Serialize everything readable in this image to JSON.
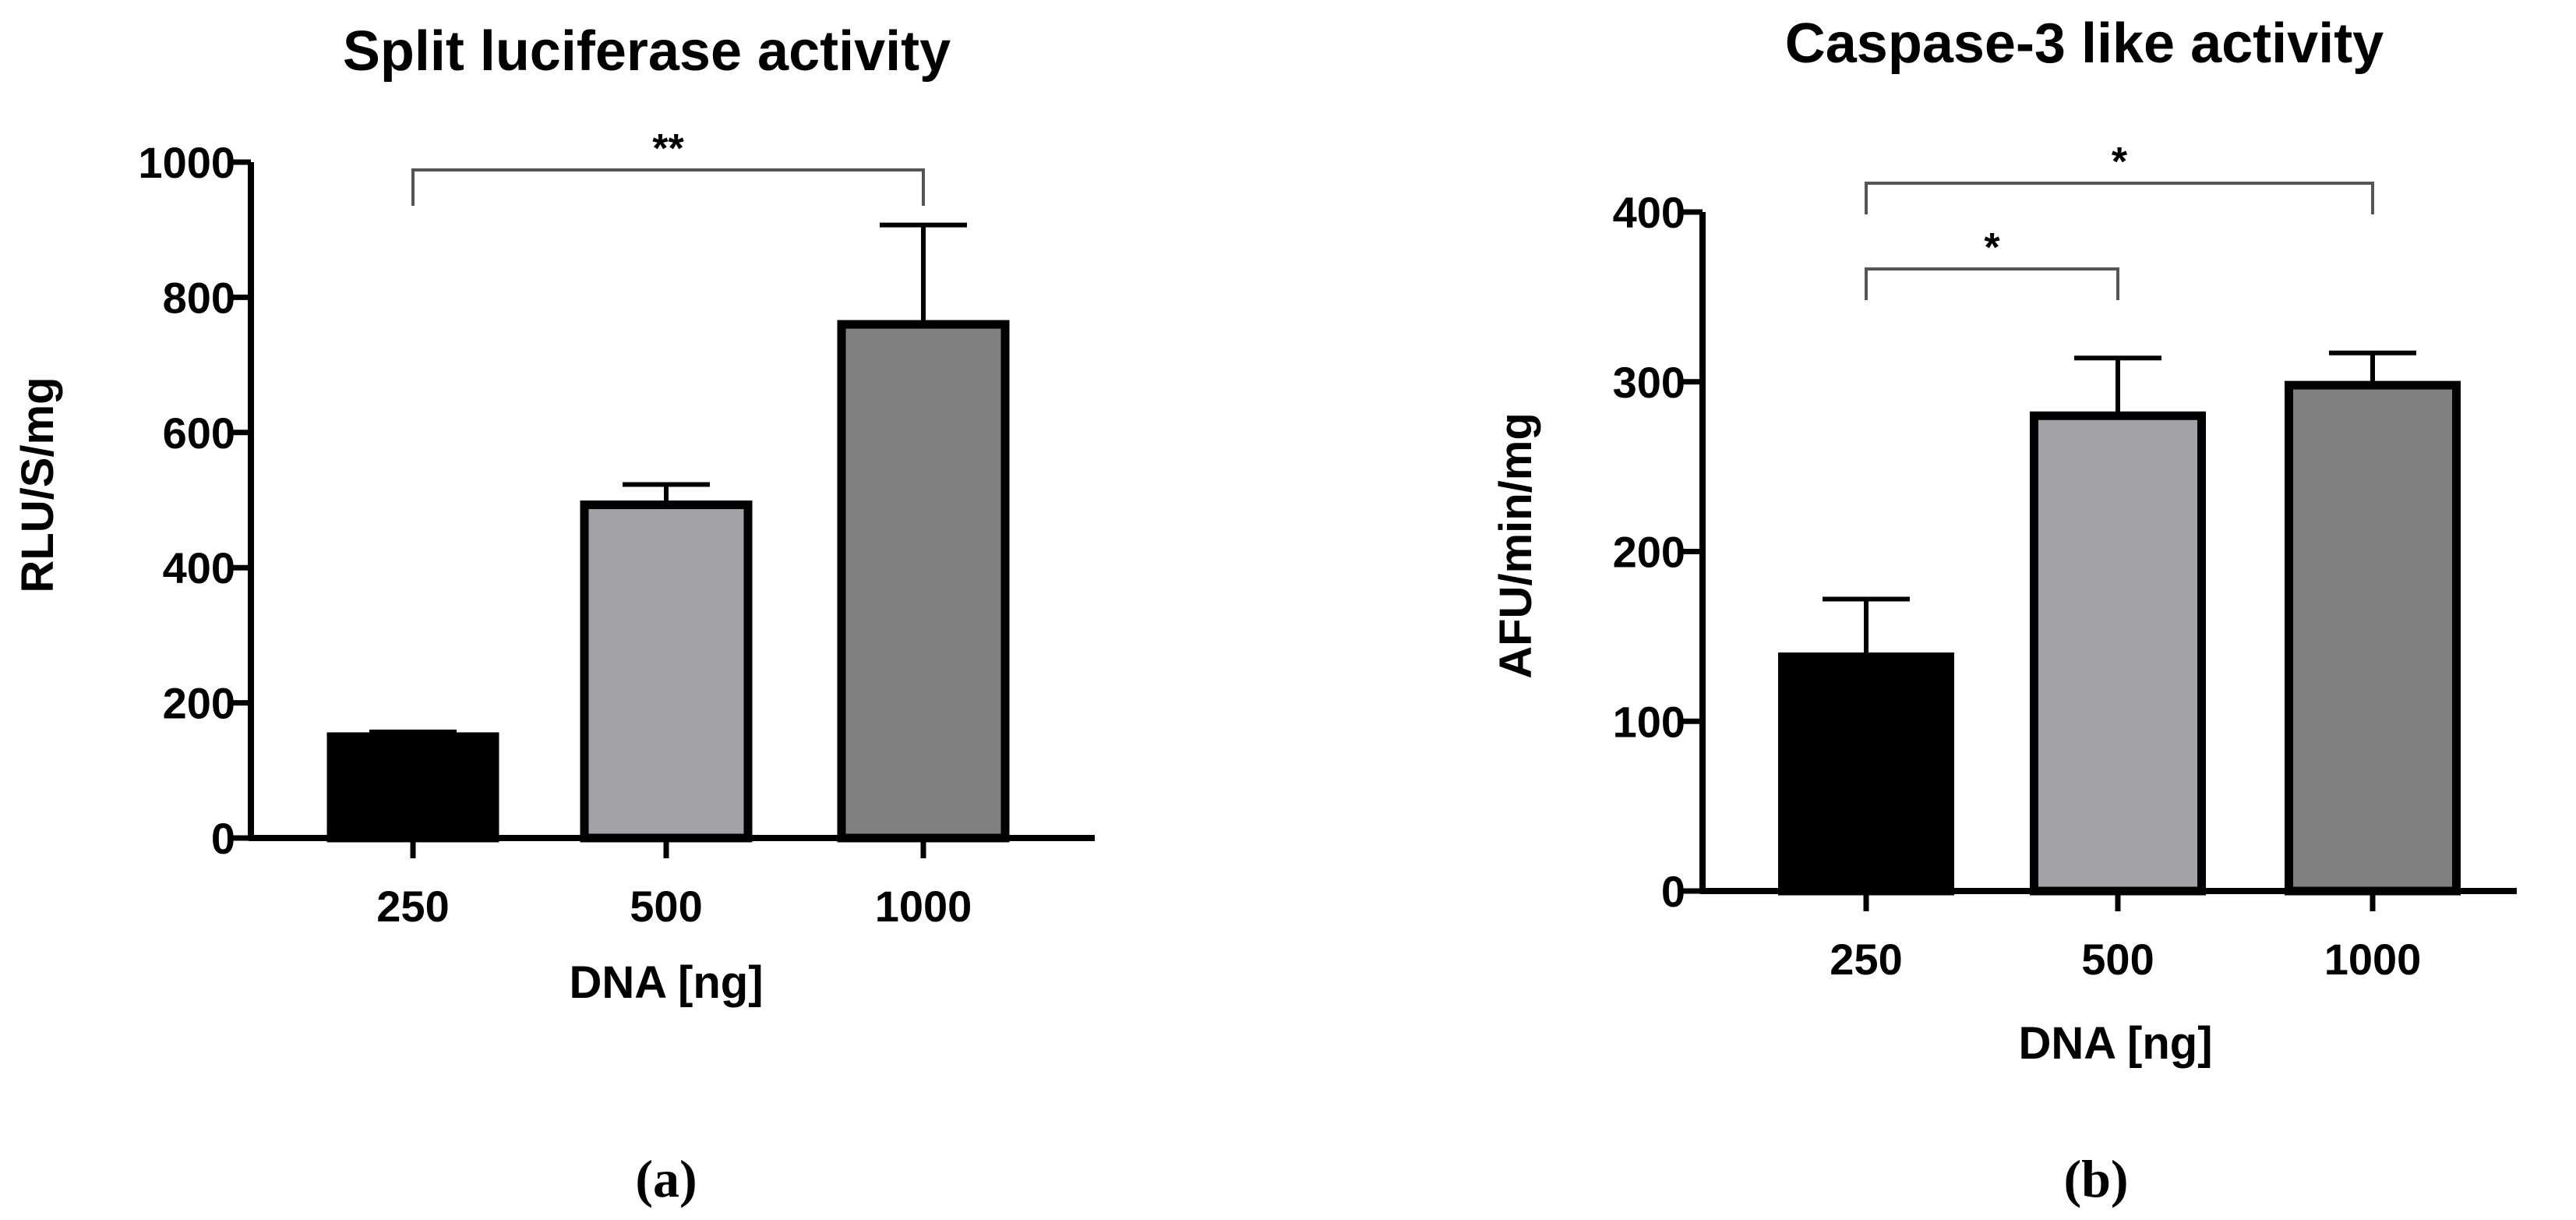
{
  "chart_data": [
    {
      "type": "bar",
      "panel": "a",
      "caption": "(a)",
      "title": "Split luciferase activity",
      "xlabel": "DNA [ng]",
      "ylabel": "RLU/S/mg",
      "categories": [
        "250",
        "500",
        "1000"
      ],
      "values": [
        150,
        493,
        760
      ],
      "errors": [
        7,
        30,
        147
      ],
      "colors": [
        "#000000",
        "#a3a2a7",
        "#808080"
      ],
      "ylim": [
        0,
        1000
      ],
      "yticks": [
        0,
        200,
        400,
        600,
        800,
        1000
      ],
      "grid": false,
      "significance": [
        {
          "from": 0,
          "to": 2,
          "label": "**"
        }
      ]
    },
    {
      "type": "bar",
      "panel": "b",
      "caption": "(b)",
      "title": "Caspase-3 like activity",
      "xlabel": "DNA [ng]",
      "ylabel": "AFU/min/mg",
      "categories": [
        "250",
        "500",
        "1000"
      ],
      "values": [
        138,
        280,
        298
      ],
      "errors": [
        34,
        34,
        19
      ],
      "colors": [
        "#000000",
        "#a3a2a7",
        "#808080"
      ],
      "ylim": [
        0,
        400
      ],
      "yticks": [
        0,
        100,
        200,
        300,
        400
      ],
      "grid": false,
      "significance": [
        {
          "from": 0,
          "to": 1,
          "label": "*"
        },
        {
          "from": 0,
          "to": 2,
          "label": "*"
        }
      ]
    }
  ]
}
